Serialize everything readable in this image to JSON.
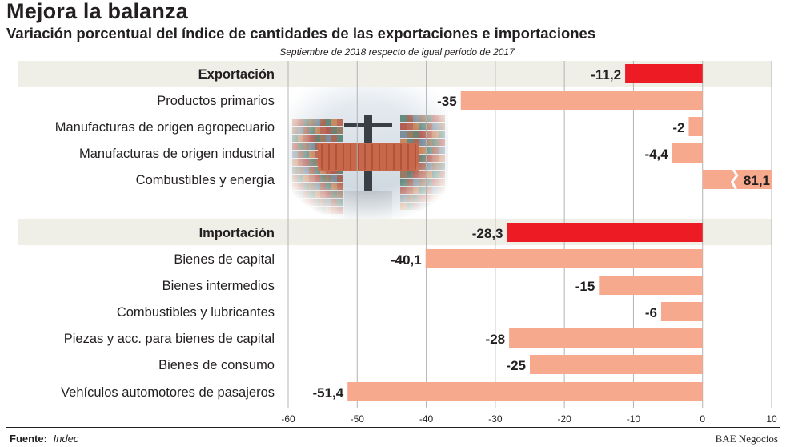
{
  "chart_data": {
    "type": "bar",
    "orientation": "horizontal",
    "title": "Mejora la balanza",
    "subtitle": "Variación porcentual del índice de cantidades de las exportaciones e importaciones",
    "note": "Septiembre de 2018 respecto de igual período de 2017",
    "xlim": [
      -60,
      10
    ],
    "xticks": [
      -60,
      -50,
      -40,
      -30,
      -20,
      -10,
      0,
      10
    ],
    "grid": true,
    "colors": {
      "group_bar": "#ed1c24",
      "item_bar": "#f7a98e",
      "group_band": "#efefe8",
      "grid": "#b3b3b3"
    },
    "categories": [
      {
        "label": "Exportación",
        "value": -11.2,
        "value_label": "-11,2",
        "group": true
      },
      {
        "label": "Productos primarios",
        "value": -35,
        "value_label": "-35",
        "group": false
      },
      {
        "label": "Manufacturas de origen agropecuario",
        "value": -2,
        "value_label": "-2",
        "group": false
      },
      {
        "label": "Manufacturas de origen industrial",
        "value": -4.4,
        "value_label": "-4,4",
        "group": false
      },
      {
        "label": "Combustibles y energía",
        "value": 81.1,
        "value_label": "81,1",
        "group": false,
        "truncated": true
      },
      {
        "label": "Importación",
        "value": -28.3,
        "value_label": "-28,3",
        "group": true
      },
      {
        "label": "Bienes de capital",
        "value": -40.1,
        "value_label": "-40,1",
        "group": false
      },
      {
        "label": "Bienes intermedios",
        "value": -15,
        "value_label": "-15",
        "group": false
      },
      {
        "label": "Combustibles y lubricantes",
        "value": -6,
        "value_label": "-6",
        "group": false
      },
      {
        "label": "Piezas y acc. para bienes de capital",
        "value": -28,
        "value_label": "-28",
        "group": false
      },
      {
        "label": "Bienes de consumo",
        "value": -25,
        "value_label": "-25",
        "group": false
      },
      {
        "label": "Vehículos automotores de pasajeros",
        "value": -51.4,
        "value_label": "-51,4",
        "group": false
      }
    ]
  },
  "footer": {
    "source_label": "Fuente:",
    "source_value": "Indec",
    "credit": "BAE Negocios"
  }
}
